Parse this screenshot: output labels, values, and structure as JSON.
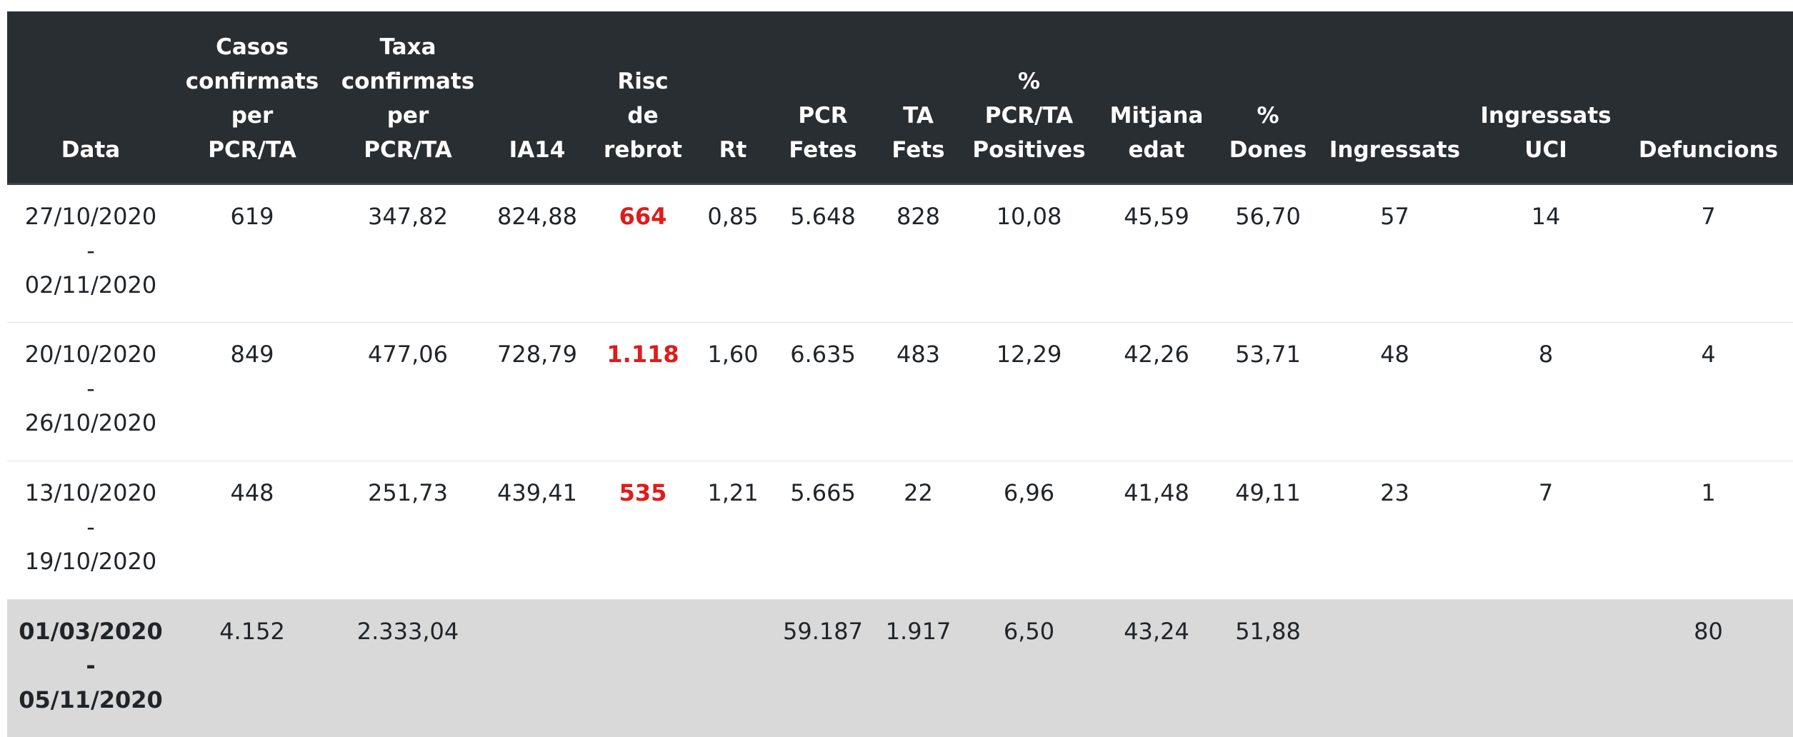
{
  "table": {
    "headers": [
      {
        "key": "data",
        "lines": [
          "Data"
        ]
      },
      {
        "key": "casos",
        "lines": [
          "Casos",
          "confirmats",
          "per",
          "PCR/TA"
        ]
      },
      {
        "key": "taxa",
        "lines": [
          "Taxa",
          "confirmats",
          "per",
          "PCR/TA"
        ]
      },
      {
        "key": "ia14",
        "lines": [
          "IA14"
        ]
      },
      {
        "key": "risc",
        "lines": [
          "Risc",
          "de",
          "rebrot"
        ]
      },
      {
        "key": "rt",
        "lines": [
          "Rt"
        ]
      },
      {
        "key": "pcr",
        "lines": [
          "PCR",
          "Fetes"
        ]
      },
      {
        "key": "ta",
        "lines": [
          "TA",
          "Fets"
        ]
      },
      {
        "key": "pct_pos",
        "lines": [
          "%",
          "PCR/TA",
          "Positives"
        ]
      },
      {
        "key": "edat",
        "lines": [
          "Mitjana",
          "edat"
        ]
      },
      {
        "key": "dones",
        "lines": [
          "%",
          "Dones"
        ]
      },
      {
        "key": "ingressats",
        "lines": [
          "Ingressats"
        ]
      },
      {
        "key": "uci",
        "lines": [
          "Ingressats",
          "UCI"
        ]
      },
      {
        "key": "defuncions",
        "lines": [
          "Defuncions"
        ]
      }
    ],
    "rows": [
      {
        "date": [
          "27/10/2020",
          "-",
          "02/11/2020"
        ],
        "casos": "619",
        "taxa": "347,82",
        "ia14": "824,88",
        "risc": "664",
        "rt": "0,85",
        "pcr": "5.648",
        "ta": "828",
        "pct_pos": "10,08",
        "edat": "45,59",
        "dones": "56,70",
        "ingressats": "57",
        "uci": "14",
        "defuncions": "7"
      },
      {
        "date": [
          "20/10/2020",
          "-",
          "26/10/2020"
        ],
        "casos": "849",
        "taxa": "477,06",
        "ia14": "728,79",
        "risc": "1.118",
        "rt": "1,60",
        "pcr": "6.635",
        "ta": "483",
        "pct_pos": "12,29",
        "edat": "42,26",
        "dones": "53,71",
        "ingressats": "48",
        "uci": "8",
        "defuncions": "4"
      },
      {
        "date": [
          "13/10/2020",
          "-",
          "19/10/2020"
        ],
        "casos": "448",
        "taxa": "251,73",
        "ia14": "439,41",
        "risc": "535",
        "rt": "1,21",
        "pcr": "5.665",
        "ta": "22",
        "pct_pos": "6,96",
        "edat": "41,48",
        "dones": "49,11",
        "ingressats": "23",
        "uci": "7",
        "defuncions": "1"
      },
      {
        "date": [
          "01/03/2020",
          "-",
          "05/11/2020"
        ],
        "casos": "4.152",
        "taxa": "2.333,04",
        "ia14": "",
        "risc": "",
        "rt": "",
        "pcr": "59.187",
        "ta": "1.917",
        "pct_pos": "6,50",
        "edat": "43,24",
        "dones": "51,88",
        "ingressats": "",
        "uci": "",
        "defuncions": "80",
        "is_total": true
      }
    ],
    "colors": {
      "header_bg": "#292e33",
      "risk_text": "#e01b1b",
      "total_row_bg": "#d9d9d9"
    }
  }
}
